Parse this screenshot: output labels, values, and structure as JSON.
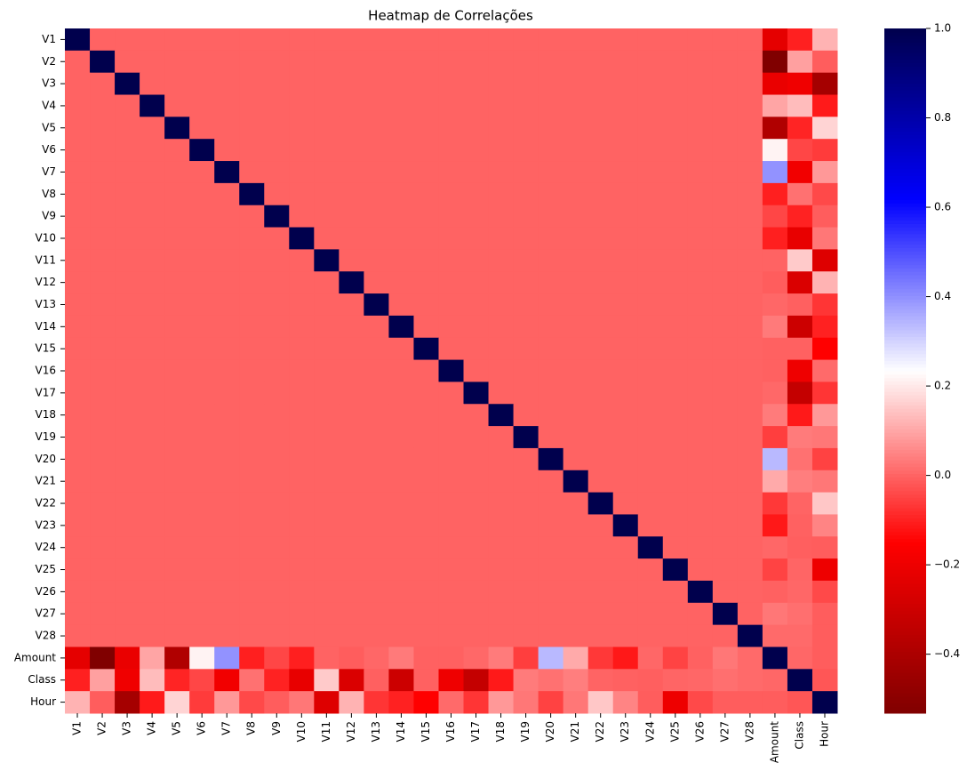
{
  "chart_data": {
    "type": "heatmap",
    "title": "Heatmap de Correlações",
    "categories": [
      "V1",
      "V2",
      "V3",
      "V4",
      "V5",
      "V6",
      "V7",
      "V8",
      "V9",
      "V10",
      "V11",
      "V12",
      "V13",
      "V14",
      "V15",
      "V16",
      "V17",
      "V18",
      "V19",
      "V20",
      "V21",
      "V22",
      "V23",
      "V24",
      "V25",
      "V26",
      "V27",
      "V28",
      "Amount",
      "Class",
      "Hour"
    ],
    "values": [
      [
        1,
        0,
        0,
        0,
        0,
        0,
        0,
        0,
        0,
        0,
        0,
        0,
        0,
        0,
        0,
        0,
        0,
        0,
        0,
        0,
        0,
        0,
        0,
        0,
        0,
        0,
        0,
        0,
        -0.227,
        -0.101,
        0.12
      ],
      [
        0,
        1,
        0,
        0,
        0,
        0,
        0,
        0,
        0,
        0,
        0,
        0,
        0,
        0,
        0,
        0,
        0,
        0,
        0,
        0,
        0,
        0,
        0,
        0,
        0,
        0,
        0,
        0,
        -0.531,
        0.091,
        -0.01
      ],
      [
        0,
        0,
        1,
        0,
        0,
        0,
        0,
        0,
        0,
        0,
        0,
        0,
        0,
        0,
        0,
        0,
        0,
        0,
        0,
        0,
        0,
        0,
        0,
        0,
        0,
        0,
        0,
        0,
        -0.211,
        -0.193,
        -0.42
      ],
      [
        0,
        0,
        0,
        1,
        0,
        0,
        0,
        0,
        0,
        0,
        0,
        0,
        0,
        0,
        0,
        0,
        0,
        0,
        0,
        0,
        0,
        0,
        0,
        0,
        0,
        0,
        0,
        0,
        0.099,
        0.133,
        -0.11
      ],
      [
        0,
        0,
        0,
        0,
        1,
        0,
        0,
        0,
        0,
        0,
        0,
        0,
        0,
        0,
        0,
        0,
        0,
        0,
        0,
        0,
        0,
        0,
        0,
        0,
        0,
        0,
        0,
        0,
        -0.386,
        -0.095,
        0.17
      ],
      [
        0,
        0,
        0,
        0,
        0,
        1,
        0,
        0,
        0,
        0,
        0,
        0,
        0,
        0,
        0,
        0,
        0,
        0,
        0,
        0,
        0,
        0,
        0,
        0,
        0,
        0,
        0,
        0,
        0.216,
        -0.044,
        -0.06
      ],
      [
        0,
        0,
        0,
        0,
        0,
        0,
        1,
        0,
        0,
        0,
        0,
        0,
        0,
        0,
        0,
        0,
        0,
        0,
        0,
        0,
        0,
        0,
        0,
        0,
        0,
        0,
        0,
        0,
        0.397,
        -0.187,
        0.08
      ],
      [
        0,
        0,
        0,
        0,
        0,
        0,
        0,
        1,
        0,
        0,
        0,
        0,
        0,
        0,
        0,
        0,
        0,
        0,
        0,
        0,
        0,
        0,
        0,
        0,
        0,
        0,
        0,
        0,
        -0.103,
        0.02,
        -0.04
      ],
      [
        0,
        0,
        0,
        0,
        0,
        0,
        0,
        0,
        1,
        0,
        0,
        0,
        0,
        0,
        0,
        0,
        0,
        0,
        0,
        0,
        0,
        0,
        0,
        0,
        0,
        0,
        0,
        0,
        -0.044,
        -0.098,
        -0.01
      ],
      [
        0,
        0,
        0,
        0,
        0,
        0,
        0,
        0,
        0,
        1,
        0,
        0,
        0,
        0,
        0,
        0,
        0,
        0,
        0,
        0,
        0,
        0,
        0,
        0,
        0,
        0,
        0,
        0,
        -0.102,
        -0.217,
        0.03
      ],
      [
        0,
        0,
        0,
        0,
        0,
        0,
        0,
        0,
        0,
        0,
        1,
        0,
        0,
        0,
        0,
        0,
        0,
        0,
        0,
        0,
        0,
        0,
        0,
        0,
        0,
        0,
        0,
        0,
        0,
        0.155,
        -0.25
      ],
      [
        0,
        0,
        0,
        0,
        0,
        0,
        0,
        0,
        0,
        0,
        0,
        1,
        0,
        0,
        0,
        0,
        0,
        0,
        0,
        0,
        0,
        0,
        0,
        0,
        0,
        0,
        0,
        0,
        -0.01,
        -0.261,
        0.12
      ],
      [
        0,
        0,
        0,
        0,
        0,
        0,
        0,
        0,
        0,
        0,
        0,
        0,
        1,
        0,
        0,
        0,
        0,
        0,
        0,
        0,
        0,
        0,
        0,
        0,
        0,
        0,
        0,
        0,
        0.005,
        -0.005,
        -0.07
      ],
      [
        0,
        0,
        0,
        0,
        0,
        0,
        0,
        0,
        0,
        0,
        0,
        0,
        0,
        1,
        0,
        0,
        0,
        0,
        0,
        0,
        0,
        0,
        0,
        0,
        0,
        0,
        0,
        0,
        0.034,
        -0.303,
        -0.1
      ],
      [
        0,
        0,
        0,
        0,
        0,
        0,
        0,
        0,
        0,
        0,
        0,
        0,
        0,
        0,
        1,
        0,
        0,
        0,
        0,
        0,
        0,
        0,
        0,
        0,
        0,
        0,
        0,
        0,
        -0.003,
        -0.004,
        -0.15
      ],
      [
        0,
        0,
        0,
        0,
        0,
        0,
        0,
        0,
        0,
        0,
        0,
        0,
        0,
        0,
        0,
        1,
        0,
        0,
        0,
        0,
        0,
        0,
        0,
        0,
        0,
        0,
        0,
        0,
        -0.004,
        -0.197,
        0.01
      ],
      [
        0,
        0,
        0,
        0,
        0,
        0,
        0,
        0,
        0,
        0,
        0,
        0,
        0,
        0,
        0,
        0,
        1,
        0,
        0,
        0,
        0,
        0,
        0,
        0,
        0,
        0,
        0,
        0,
        0.007,
        -0.326,
        -0.07
      ],
      [
        0,
        0,
        0,
        0,
        0,
        0,
        0,
        0,
        0,
        0,
        0,
        0,
        0,
        0,
        0,
        0,
        0,
        1,
        0,
        0,
        0,
        0,
        0,
        0,
        0,
        0,
        0,
        0,
        0.036,
        -0.111,
        0.08
      ],
      [
        0,
        0,
        0,
        0,
        0,
        0,
        0,
        0,
        0,
        0,
        0,
        0,
        0,
        0,
        0,
        0,
        0,
        0,
        1,
        0,
        0,
        0,
        0,
        0,
        0,
        0,
        0,
        0,
        -0.056,
        0.035,
        0.03
      ],
      [
        0,
        0,
        0,
        0,
        0,
        0,
        0,
        0,
        0,
        0,
        0,
        0,
        0,
        0,
        0,
        0,
        0,
        0,
        0,
        1,
        0,
        0,
        0,
        0,
        0,
        0,
        0,
        0,
        0.339,
        0.02,
        -0.05
      ],
      [
        0,
        0,
        0,
        0,
        0,
        0,
        0,
        0,
        0,
        0,
        0,
        0,
        0,
        0,
        0,
        0,
        0,
        0,
        0,
        0,
        1,
        0,
        0,
        0,
        0,
        0,
        0,
        0,
        0.106,
        0.04,
        0.03
      ],
      [
        0,
        0,
        0,
        0,
        0,
        0,
        0,
        0,
        0,
        0,
        0,
        0,
        0,
        0,
        0,
        0,
        0,
        0,
        0,
        0,
        0,
        1,
        0,
        0,
        0,
        0,
        0,
        0,
        -0.065,
        0.001,
        0.15
      ],
      [
        0,
        0,
        0,
        0,
        0,
        0,
        0,
        0,
        0,
        0,
        0,
        0,
        0,
        0,
        0,
        0,
        0,
        0,
        0,
        0,
        0,
        0,
        1,
        0,
        0,
        0,
        0,
        0,
        -0.113,
        -0.003,
        0.05
      ],
      [
        0,
        0,
        0,
        0,
        0,
        0,
        0,
        0,
        0,
        0,
        0,
        0,
        0,
        0,
        0,
        0,
        0,
        0,
        0,
        0,
        0,
        0,
        0,
        1,
        0,
        0,
        0,
        0,
        0.005,
        -0.007,
        -0.01
      ],
      [
        0,
        0,
        0,
        0,
        0,
        0,
        0,
        0,
        0,
        0,
        0,
        0,
        0,
        0,
        0,
        0,
        0,
        0,
        0,
        0,
        0,
        0,
        0,
        0,
        1,
        0,
        0,
        0,
        -0.048,
        0.003,
        -0.2
      ],
      [
        0,
        0,
        0,
        0,
        0,
        0,
        0,
        0,
        0,
        0,
        0,
        0,
        0,
        0,
        0,
        0,
        0,
        0,
        0,
        0,
        0,
        0,
        0,
        0,
        0,
        1,
        0,
        0,
        -0.003,
        0.005,
        -0.04
      ],
      [
        0,
        0,
        0,
        0,
        0,
        0,
        0,
        0,
        0,
        0,
        0,
        0,
        0,
        0,
        0,
        0,
        0,
        0,
        0,
        0,
        0,
        0,
        0,
        0,
        0,
        0,
        1,
        0,
        0.029,
        0.018,
        -0.01
      ],
      [
        0,
        0,
        0,
        0,
        0,
        0,
        0,
        0,
        0,
        0,
        0,
        0,
        0,
        0,
        0,
        0,
        0,
        0,
        0,
        0,
        0,
        0,
        0,
        0,
        0,
        0,
        0,
        1,
        0.01,
        0.01,
        -0.01
      ],
      [
        -0.227,
        -0.531,
        -0.211,
        0.099,
        -0.386,
        0.216,
        0.397,
        -0.103,
        -0.044,
        -0.102,
        0,
        -0.01,
        0.005,
        0.034,
        -0.003,
        -0.004,
        0.007,
        0.036,
        -0.056,
        0.339,
        0.106,
        -0.065,
        -0.113,
        0.005,
        -0.048,
        -0.003,
        0.029,
        0.01,
        1,
        0.006,
        -0.01
      ],
      [
        -0.101,
        0.091,
        -0.193,
        0.133,
        -0.095,
        -0.044,
        -0.187,
        0.02,
        -0.098,
        -0.217,
        0.155,
        -0.261,
        -0.005,
        -0.303,
        -0.004,
        -0.197,
        -0.326,
        -0.111,
        0.035,
        0.02,
        0.04,
        0.001,
        -0.003,
        -0.007,
        0.003,
        0.005,
        0.018,
        0.01,
        0.006,
        1,
        -0.02
      ],
      [
        0.12,
        -0.01,
        -0.42,
        -0.11,
        0.17,
        -0.06,
        0.08,
        -0.04,
        -0.01,
        0.03,
        -0.25,
        0.12,
        -0.07,
        -0.1,
        -0.15,
        0.01,
        -0.07,
        0.08,
        0.03,
        -0.05,
        0.03,
        0.15,
        0.05,
        -0.01,
        -0.2,
        -0.04,
        -0.01,
        -0.01,
        -0.01,
        -0.02,
        1
      ]
    ],
    "colormap": [
      "#800000",
      "#ff0000",
      "#ffffff",
      "#0000ff",
      "#00004d"
    ],
    "zlim": [
      -0.532,
      1.0
    ],
    "zticks": [
      {
        "value": -0.4,
        "label": "−0.4"
      },
      {
        "value": -0.2,
        "label": "−0.2"
      },
      {
        "value": 0,
        "label": "0.0"
      },
      0.2,
      0.4,
      0.6,
      0.8,
      {
        "value": 1,
        "label": "1.0"
      }
    ]
  }
}
